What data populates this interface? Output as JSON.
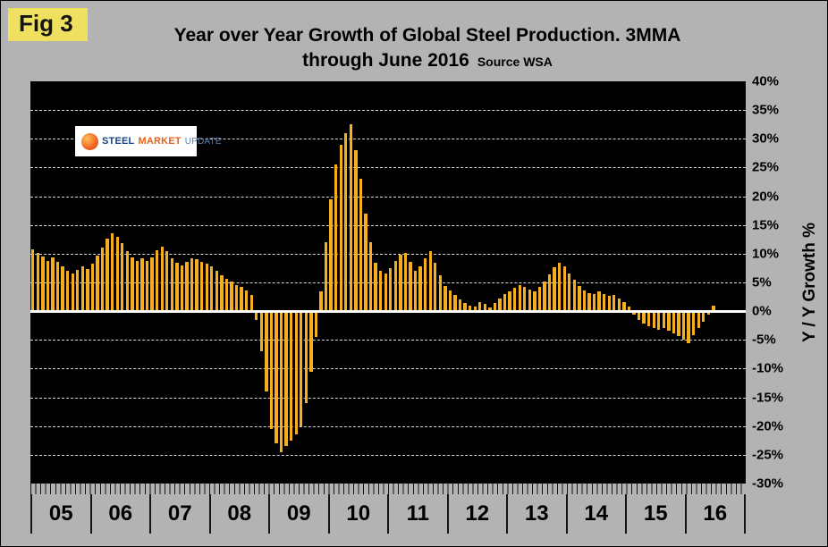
{
  "figure_label": "Fig 3",
  "title": {
    "line1": "Year over Year Growth of Global Steel Production. 3MMA",
    "line2": "through June 2016",
    "source": "Source WSA"
  },
  "logo": {
    "word1": "STEEL",
    "word2": "MARKET",
    "word3": "UPDATE"
  },
  "right_axis_title": "Y / Y Growth %",
  "chart_data": {
    "type": "bar",
    "title": "Year over Year Growth of Global Steel Production. 3MMA through June 2016",
    "source": "Source WSA",
    "xlabel": "",
    "ylabel": "Y / Y Growth %",
    "ylim": [
      -30,
      40
    ],
    "ytick_step": 5,
    "ytick_labels": [
      "40%",
      "35%",
      "30%",
      "25%",
      "20%",
      "15%",
      "10%",
      "5%",
      "0%",
      "-5%",
      "-10%",
      "-15%",
      "-20%",
      "-25%",
      "-30%"
    ],
    "grid": true,
    "legend": "none",
    "bar_color": "#F5AF1E",
    "background": "#000000",
    "years": [
      "05",
      "06",
      "07",
      "08",
      "09",
      "10",
      "11",
      "12",
      "13",
      "14",
      "15",
      "16"
    ],
    "months_start": "2005-01",
    "months_end": "2016-06",
    "total_slots": 144,
    "values": [
      10.8,
      10.2,
      9.5,
      8.8,
      9.4,
      8.6,
      7.8,
      7.0,
      6.5,
      7.2,
      7.8,
      7.4,
      8.2,
      9.6,
      11.0,
      12.6,
      13.6,
      13.0,
      11.8,
      10.4,
      9.4,
      8.8,
      9.2,
      8.8,
      9.4,
      10.6,
      11.2,
      10.4,
      9.2,
      8.4,
      8.0,
      8.6,
      9.2,
      9.0,
      8.6,
      8.2,
      7.8,
      7.0,
      6.2,
      5.6,
      5.2,
      4.6,
      4.2,
      3.6,
      2.8,
      -1.5,
      -7.0,
      -14.0,
      -20.5,
      -23.0,
      -24.5,
      -23.5,
      -22.5,
      -21.5,
      -20.0,
      -16.0,
      -10.5,
      -4.5,
      3.5,
      12.0,
      19.5,
      25.5,
      29.0,
      31.0,
      32.5,
      28.0,
      23.0,
      17.0,
      12.0,
      8.5,
      7.0,
      6.5,
      7.5,
      8.8,
      9.8,
      10.2,
      8.6,
      7.0,
      7.8,
      9.2,
      10.4,
      8.4,
      6.2,
      4.4,
      3.6,
      2.8,
      2.0,
      1.4,
      1.0,
      0.8,
      1.6,
      1.2,
      0.6,
      1.4,
      2.2,
      3.0,
      3.4,
      4.0,
      4.6,
      4.2,
      3.8,
      3.4,
      4.2,
      5.2,
      6.4,
      7.6,
      8.4,
      7.8,
      6.6,
      5.4,
      4.4,
      3.6,
      3.2,
      3.0,
      3.4,
      3.0,
      2.6,
      2.8,
      2.2,
      1.6,
      0.8,
      -0.6,
      -1.6,
      -2.2,
      -2.6,
      -3.0,
      -3.2,
      -3.0,
      -3.4,
      -3.8,
      -4.4,
      -5.0,
      -5.6,
      -4.2,
      -3.0,
      -1.8,
      -0.6,
      1.0
    ]
  }
}
